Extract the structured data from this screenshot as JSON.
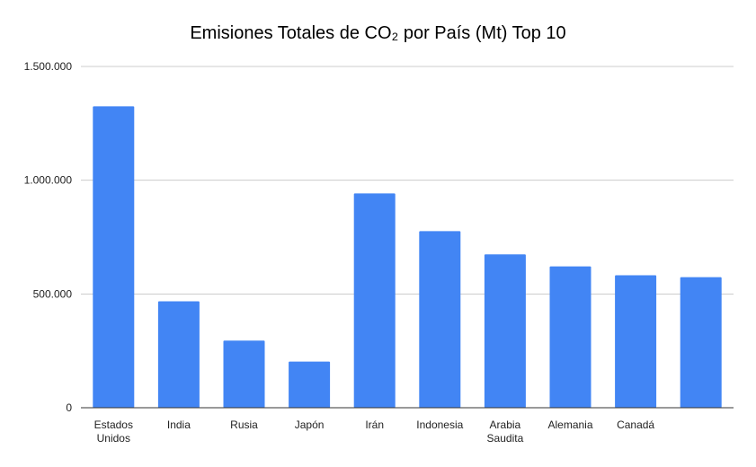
{
  "chart_data": {
    "type": "bar",
    "title": "Emisiones Totales de CO₂ por País (Mt) Top 10",
    "xlabel": "",
    "ylabel": "",
    "categories": [
      "Estados Unidos",
      "India",
      "Rusia",
      "Japón",
      "Irán",
      "Indonesia",
      "Arabia Saudita",
      "Alemania",
      "Canadá",
      ""
    ],
    "series": [
      {
        "values": [
          1325000,
          468000,
          295000,
          203000,
          942000,
          776000,
          674000,
          621000,
          582000,
          574000
        ],
        "color": "#4285f4"
      }
    ],
    "ylim": [
      0,
      1500000
    ],
    "yticks": [
      {
        "value": 0,
        "label": "0"
      },
      {
        "value": 500000,
        "label": "500.000"
      },
      {
        "value": 1000000,
        "label": "1.000.000"
      },
      {
        "value": 1500000,
        "label": "1.500.000"
      }
    ],
    "grid": true,
    "legend": "none",
    "colors": {
      "bar": "#4285f4",
      "grid": "#cccccc",
      "axis": "#333333",
      "text": "#222222"
    }
  }
}
